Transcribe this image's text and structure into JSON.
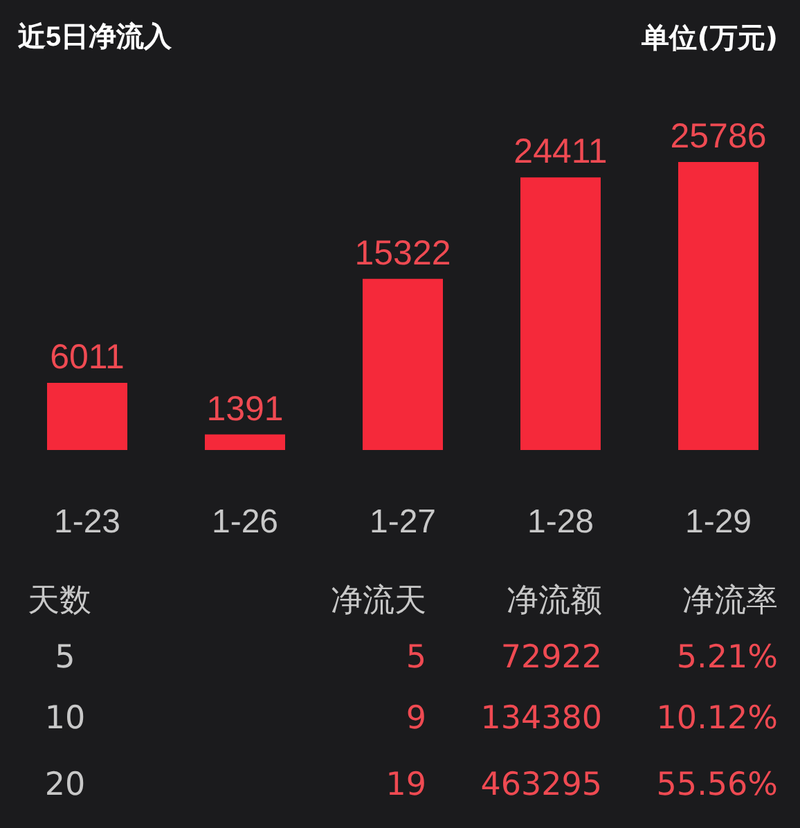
{
  "chart_data": {
    "type": "bar",
    "title": "近5日净流入",
    "categories": [
      "1-23",
      "1-26",
      "1-27",
      "1-28",
      "1-29"
    ],
    "values": [
      6011,
      1391,
      15322,
      24411,
      25786
    ],
    "color": "#f5293a",
    "data_labels": true,
    "annotations": [
      "单位(万元)",
      "天数",
      "净流天",
      "净流额",
      "净流率",
      "5",
      "5",
      "72922",
      "5.21%",
      "10",
      "9",
      "134380",
      "10.12%",
      "20",
      "19",
      "463295",
      "55.56%"
    ]
  }
}
